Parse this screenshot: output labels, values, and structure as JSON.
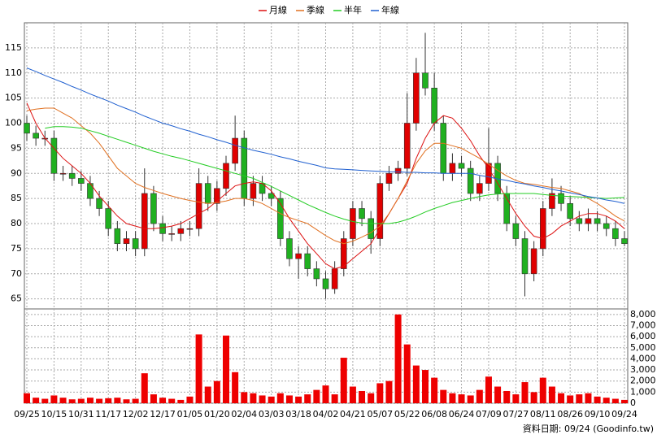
{
  "chart_data": {
    "type": "candlestick",
    "categories": [
      "09/25",
      null,
      null,
      "10/15",
      null,
      null,
      "10/31",
      null,
      null,
      "11/17",
      null,
      null,
      "12/02",
      null,
      null,
      "12/17",
      null,
      null,
      "01/05",
      null,
      null,
      "01/20",
      null,
      null,
      "02/04",
      null,
      null,
      "03/03",
      null,
      null,
      "03/18",
      null,
      null,
      "04/02",
      null,
      null,
      "04/21",
      null,
      null,
      "05/07",
      null,
      null,
      "05/22",
      null,
      null,
      "06/08",
      null,
      null,
      "06/24",
      null,
      null,
      "07/09",
      null,
      null,
      "07/27",
      null,
      null,
      "08/11",
      null,
      null,
      "08/26",
      null,
      null,
      "09/10",
      null,
      null,
      "09/24"
    ],
    "open": [
      100,
      98,
      97,
      97,
      90,
      90,
      89,
      88,
      85,
      83,
      79,
      76,
      77,
      75,
      86,
      80,
      78,
      78,
      79,
      79,
      88,
      84,
      87,
      92,
      97,
      85,
      88,
      86,
      85,
      77,
      73,
      74,
      71,
      69,
      67,
      71,
      77,
      83,
      81,
      77,
      88,
      90,
      91,
      100,
      110,
      107,
      100,
      90,
      92,
      91,
      86,
      88,
      92,
      86,
      80,
      77,
      70,
      75,
      83,
      86,
      84,
      81,
      80,
      81,
      80,
      79,
      77
    ],
    "high": [
      101.5,
      99.5,
      98.5,
      98.5,
      91.5,
      91.5,
      90.5,
      89.5,
      86.5,
      84.5,
      80.5,
      78.5,
      78.5,
      91,
      87.5,
      81.5,
      79.5,
      80.5,
      80.5,
      91,
      89.5,
      88.5,
      93.5,
      101.5,
      98.5,
      89.5,
      89.5,
      87.5,
      86.5,
      78.5,
      75.5,
      75.5,
      72.5,
      70.5,
      72.5,
      78.5,
      84.5,
      84.5,
      82.5,
      89.5,
      91.5,
      92.5,
      106,
      113,
      118,
      110,
      101.5,
      94,
      93.5,
      92.5,
      89.5,
      99,
      93.5,
      87.5,
      81.5,
      78.5,
      76.5,
      84.5,
      89,
      87.5,
      85.5,
      82.5,
      83,
      82.5,
      81.5,
      80.5,
      78.5
    ],
    "low": [
      96.5,
      95.5,
      95.5,
      88.5,
      88.5,
      87.5,
      86.5,
      83.5,
      81.5,
      77.5,
      74.5,
      74.5,
      73.5,
      73.5,
      78.5,
      76.5,
      76.5,
      76.5,
      77.5,
      77.5,
      82.5,
      82.5,
      85.5,
      90.5,
      83.5,
      83.5,
      84.5,
      83.5,
      75.5,
      71.5,
      69,
      69.5,
      67.5,
      65,
      66,
      69.5,
      75.5,
      79.5,
      74,
      75.5,
      86.5,
      88.5,
      89.5,
      98.5,
      105.5,
      98.5,
      88.5,
      88.5,
      89.5,
      84.5,
      84.5,
      86.5,
      84.5,
      78.5,
      75.5,
      65.5,
      68.5,
      73.5,
      81.5,
      82.5,
      79.5,
      78.5,
      78.5,
      78.5,
      77.5,
      75.5,
      75.5
    ],
    "close": [
      98,
      97,
      97,
      90,
      90,
      89,
      88,
      85,
      83,
      79,
      76,
      77,
      75,
      86,
      80,
      78,
      78,
      79,
      79,
      88,
      84,
      87,
      92,
      97,
      85,
      88,
      86,
      85,
      77,
      73,
      74,
      71,
      69,
      67,
      71,
      77,
      83,
      81,
      77,
      88,
      90,
      91,
      100,
      110,
      107,
      100,
      90,
      92,
      91,
      86,
      88,
      92,
      86,
      80,
      77,
      70,
      75,
      83,
      86,
      84,
      81,
      80,
      81,
      80,
      79,
      77,
      76
    ],
    "up_color": "#e00000",
    "down_color": "#20b020",
    "series": [
      {
        "name": "月線",
        "color": "#dd1111",
        "values": [
          104,
          100,
          97,
          95,
          93,
          91.5,
          90,
          88,
          85.5,
          83.5,
          81.5,
          80,
          79.5,
          79,
          79,
          79.2,
          79.5,
          80,
          81,
          82,
          83,
          84.5,
          86,
          87.5,
          88,
          88.3,
          88,
          86.5,
          84,
          81,
          78.5,
          76,
          74,
          72,
          71,
          71.5,
          73,
          74.5,
          76,
          79,
          82,
          85,
          88,
          93,
          97,
          100,
          101.5,
          101,
          99,
          96.5,
          93.5,
          91,
          88,
          85,
          82,
          79.5,
          77.5,
          77,
          78,
          79.5,
          80.5,
          81.5,
          82,
          82,
          81.5,
          80.5,
          79
        ]
      },
      {
        "name": "季線",
        "color": "#e07020",
        "values": [
          102.5,
          102.8,
          103,
          103,
          102,
          101,
          99.5,
          98,
          96,
          93.5,
          91,
          89.5,
          88,
          87.2,
          86.6,
          86,
          85.5,
          85,
          84.6,
          84.3,
          84,
          84.2,
          84.5,
          85,
          85,
          84.6,
          84,
          83,
          82,
          81.2,
          80.6,
          80,
          78.8,
          77.6,
          76.6,
          76,
          76.5,
          77.3,
          78.2,
          79.5,
          82,
          85,
          88.5,
          92,
          94.5,
          96,
          96,
          95.5,
          95,
          94,
          93,
          91.8,
          90.6,
          89.5,
          88.6,
          88,
          87.8,
          87.5,
          87.2,
          87,
          86.5,
          86,
          85,
          84,
          82.8,
          81.5,
          80.5
        ]
      },
      {
        "name": "半年",
        "color": "#22cc22",
        "values": [
          null,
          null,
          99,
          99.3,
          99.3,
          99.2,
          99,
          98.5,
          98,
          97.4,
          96.8,
          96.2,
          95.6,
          95,
          94.4,
          93.9,
          93.4,
          93,
          92.5,
          92,
          91.5,
          91,
          90.5,
          90,
          89.5,
          89,
          88.2,
          87.4,
          86.5,
          85.6,
          84.7,
          83.8,
          83,
          82.2,
          81.5,
          80.9,
          80.4,
          80.1,
          80,
          80,
          80,
          80.3,
          80.8,
          81.5,
          82.3,
          83,
          83.6,
          84.2,
          84.6,
          85,
          85.4,
          85.7,
          85.9,
          86,
          86,
          86,
          86,
          85.8,
          85.6,
          85.5,
          85.4,
          85.3,
          85.2,
          85.1,
          85,
          85.1,
          85.2
        ]
      },
      {
        "name": "年線",
        "color": "#2060d0",
        "values": [
          111,
          110.3,
          109.5,
          108.8,
          108.1,
          107.3,
          106.6,
          105.8,
          105.1,
          104.4,
          103.6,
          102.9,
          102.2,
          101.4,
          100.7,
          100,
          99.5,
          98.9,
          98.4,
          97.8,
          97.3,
          96.7,
          96.2,
          95.6,
          95.1,
          94.6,
          94.2,
          93.8,
          93.3,
          92.9,
          92.4,
          92,
          91.6,
          91.1,
          90.9,
          90.8,
          90.7,
          90.6,
          90.5,
          90.4,
          90.3,
          90.3,
          90.2,
          90.2,
          90.1,
          90.1,
          90,
          90,
          90,
          90,
          89.6,
          89.3,
          88.9,
          88.6,
          88.2,
          87.9,
          87.5,
          87.2,
          86.8,
          86.5,
          86.1,
          85.8,
          85.4,
          85.1,
          84.7,
          84.4,
          84
        ]
      }
    ],
    "ylim": [
      63,
      120
    ],
    "yticks": [
      65,
      70,
      75,
      80,
      85,
      90,
      95,
      100,
      105,
      110,
      115
    ],
    "volume": {
      "color": "#ee0000",
      "values": [
        900,
        500,
        400,
        700,
        500,
        350,
        400,
        500,
        400,
        450,
        500,
        350,
        400,
        2700,
        800,
        500,
        400,
        300,
        600,
        6200,
        1500,
        2000,
        6100,
        2800,
        1000,
        900,
        700,
        600,
        900,
        700,
        600,
        800,
        1200,
        1600,
        800,
        4100,
        1500,
        1100,
        900,
        1800,
        2000,
        8000,
        5300,
        3400,
        3000,
        2300,
        1200,
        900,
        800,
        700,
        1200,
        2400,
        1500,
        1100,
        800,
        1900,
        1000,
        2300,
        1500,
        900,
        700,
        800,
        900,
        600,
        500,
        400,
        300
      ],
      "ylim": [
        0,
        8500
      ],
      "yticks": [
        0,
        {
          "value": 1000,
          "label": "1,000"
        },
        {
          "value": 2000,
          "label": "2,000"
        },
        {
          "value": 3000,
          "label": "3,000"
        },
        {
          "value": 4000,
          "label": "4,000"
        },
        {
          "value": 5000,
          "label": "5,000"
        },
        {
          "value": 6000,
          "label": "6,000"
        },
        {
          "value": 7000,
          "label": "7,000"
        },
        {
          "value": 8000,
          "label": "8,000"
        }
      ]
    },
    "grid": true,
    "source_note": "資料日期: 09/24 (Goodinfo.tw)"
  }
}
